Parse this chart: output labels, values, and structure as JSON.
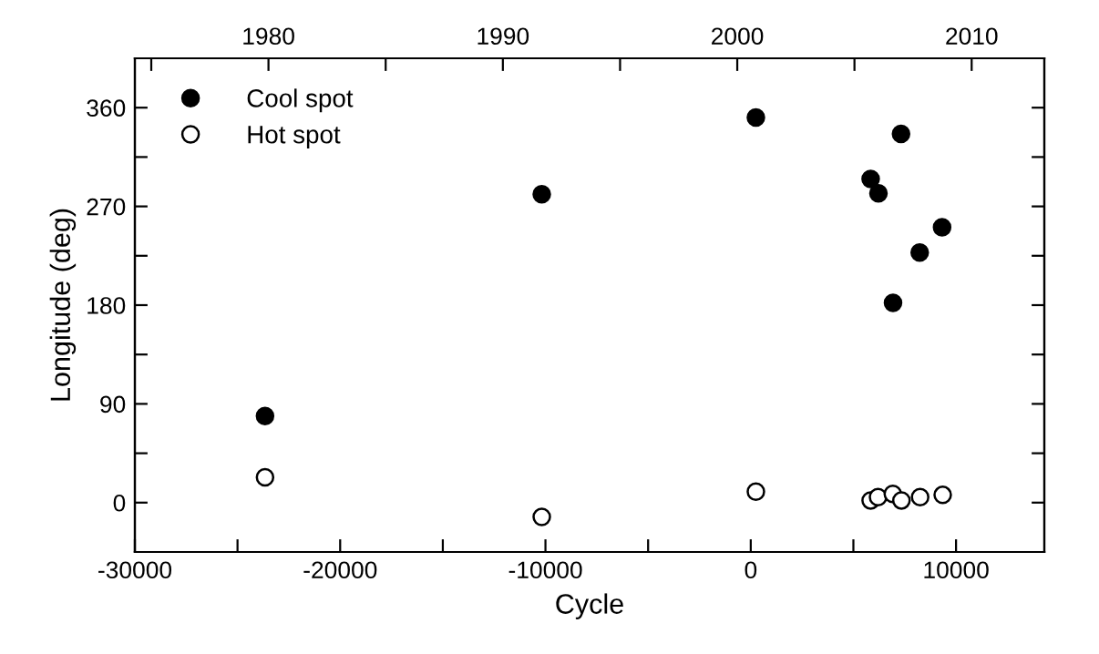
{
  "chart_data": {
    "type": "scatter",
    "xlabel": "Cycle",
    "ylabel": "Longitude (deg)",
    "xlim": [
      -30000,
      14300
    ],
    "xticks": [
      -30000,
      {
        "value": -25000,
        "label": null
      },
      -20000,
      {
        "value": -15000,
        "label": null
      },
      -10000,
      {
        "value": -5000,
        "label": null
      },
      0,
      {
        "value": 5000,
        "label": null
      },
      10000
    ],
    "x2lim": [
      1974.3,
      2013.1
    ],
    "x2ticks": [
      {
        "value": 1975,
        "label": null
      },
      1980,
      {
        "value": 1985,
        "label": null
      },
      1990,
      {
        "value": 1995,
        "label": null
      },
      2000,
      {
        "value": 2005,
        "label": null
      },
      2010
    ],
    "ylim": [
      -45,
      405
    ],
    "yticks": [
      0,
      {
        "value": 45,
        "label": null
      },
      90,
      {
        "value": 135,
        "label": null
      },
      180,
      {
        "value": 225,
        "label": null
      },
      270,
      {
        "value": 315,
        "label": null
      },
      360
    ],
    "legend": "top left",
    "marker": "circle",
    "grid": false,
    "series": [
      {
        "name": "Cool spot",
        "color": "#000000",
        "x": [
          -23660,
          -10180,
          250,
          5840,
          6220,
          6930,
          7320,
          8230,
          9320
        ],
        "values": [
          79,
          281,
          351,
          295,
          282,
          182,
          336,
          228,
          251
        ]
      },
      {
        "name": "Hot spot",
        "color": "#ffffff",
        "x": [
          -23660,
          -10180,
          250,
          5840,
          6200,
          6920,
          7340,
          8250,
          9350
        ],
        "values": [
          23,
          -13,
          10,
          2,
          5,
          8,
          2,
          5,
          7
        ]
      }
    ]
  }
}
